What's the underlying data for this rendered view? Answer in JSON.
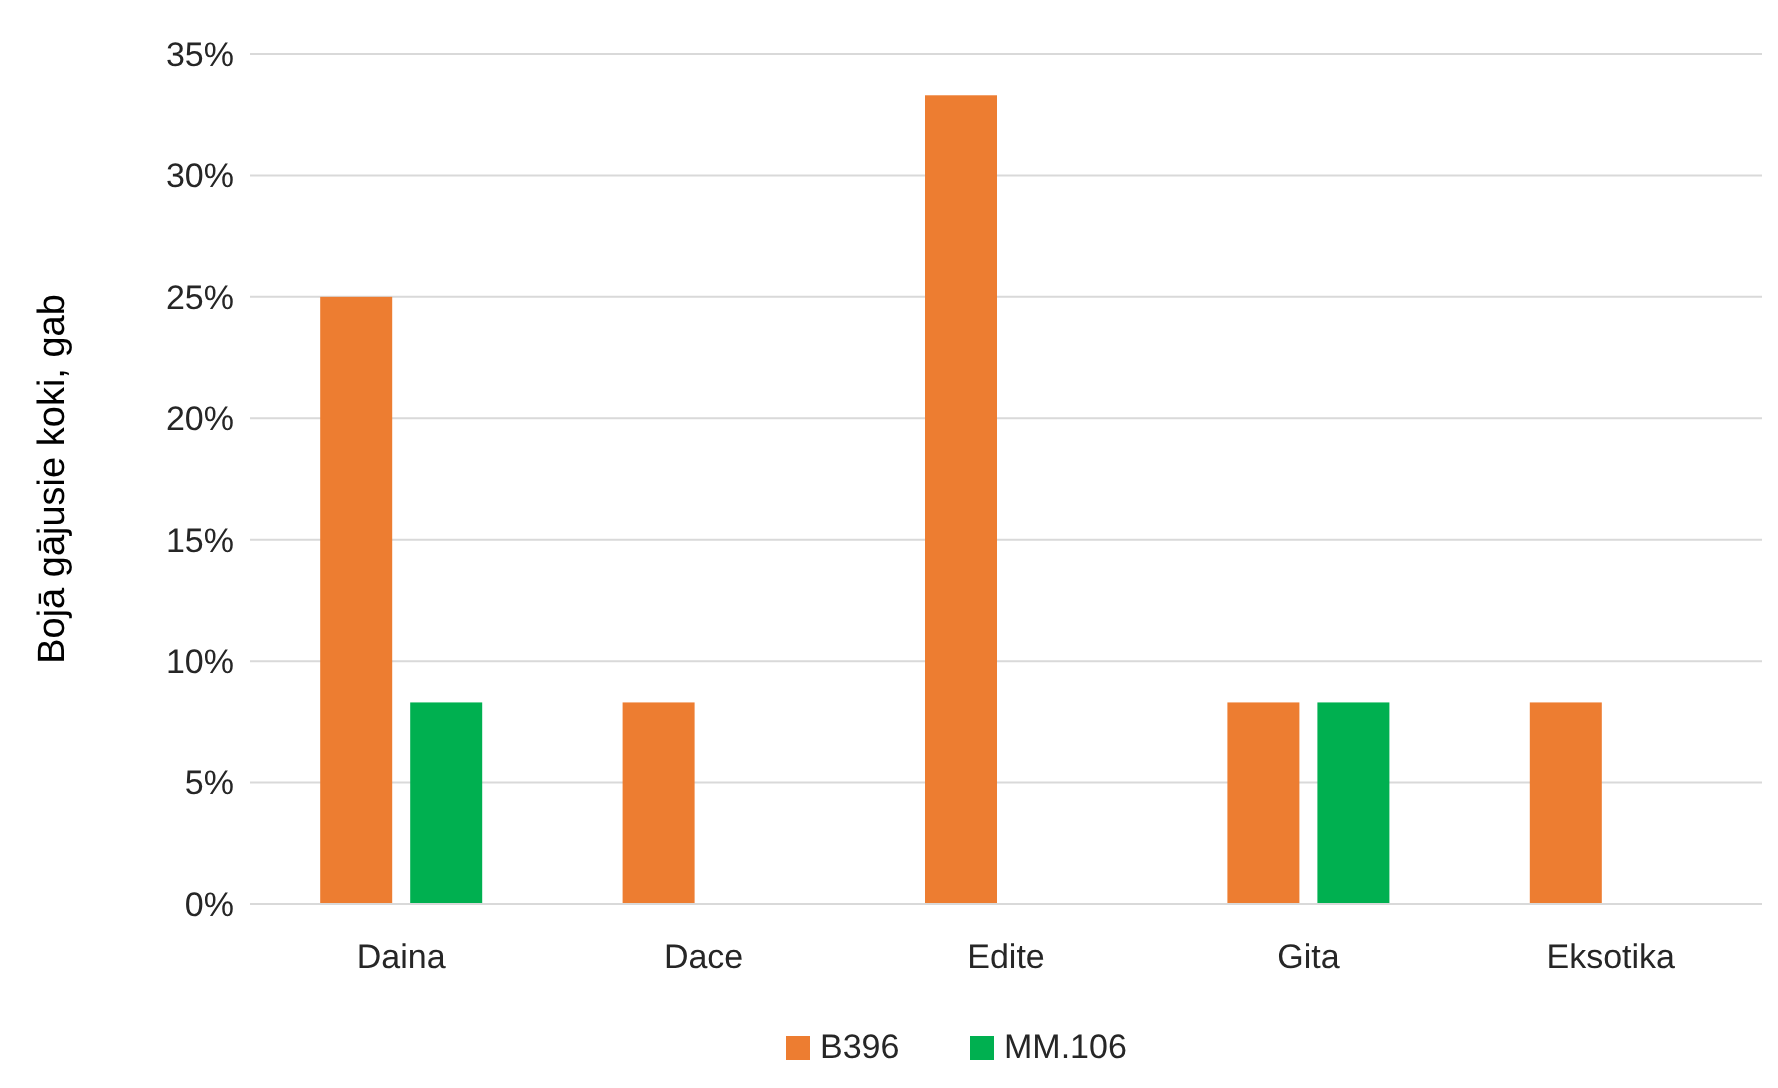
{
  "chart_data": {
    "type": "bar",
    "ylabel": "Bojā gājusie koki, gab",
    "categories": [
      "Daina",
      "Dace",
      "Edite",
      "Gita",
      "Eksotika"
    ],
    "series": [
      {
        "name": "B396",
        "color": "#ed7d31",
        "values": [
          25,
          8.3,
          33.3,
          8.3,
          8.3
        ]
      },
      {
        "name": "MM.106",
        "color": "#00b050",
        "values": [
          8.3,
          0,
          0,
          8.3,
          0
        ]
      }
    ],
    "ylim": [
      0,
      35
    ],
    "yticks": [
      {
        "value": 0,
        "label": "0%"
      },
      {
        "value": 5,
        "label": "5%"
      },
      {
        "value": 10,
        "label": "10%"
      },
      {
        "value": 15,
        "label": "15%"
      },
      {
        "value": 20,
        "label": "20%"
      },
      {
        "value": 25,
        "label": "25%"
      },
      {
        "value": 30,
        "label": "30%"
      },
      {
        "value": 35,
        "label": "35%"
      }
    ],
    "grid": "y",
    "legend": "bottom"
  }
}
